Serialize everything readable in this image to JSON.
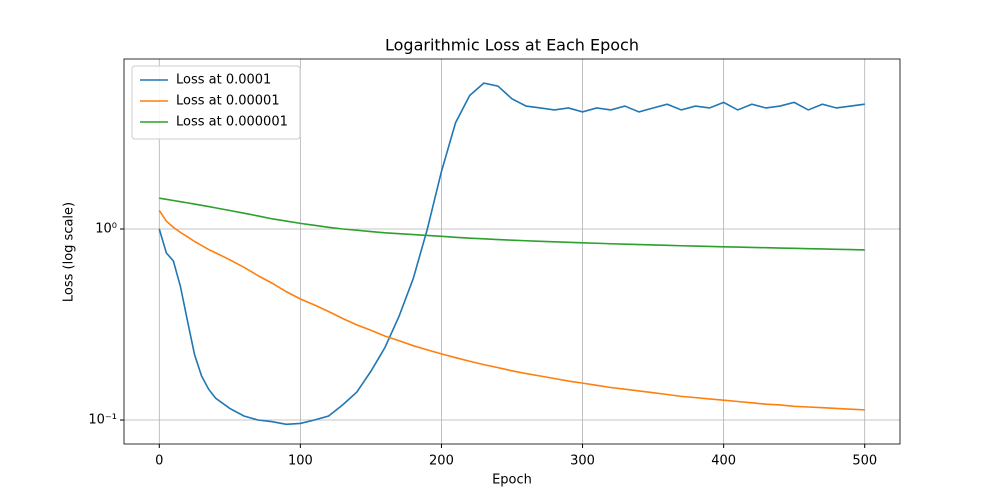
{
  "chart_data": {
    "type": "line",
    "title": "Logarithmic Loss at Each Epoch",
    "x_label": "Epoch",
    "y_label": "Loss (log scale)",
    "yscale": "log",
    "grid": true,
    "legend": "upper left",
    "xlim": [
      -25,
      525
    ],
    "xticks": [
      0,
      100,
      200,
      300,
      400,
      500
    ],
    "ylim": [
      0.0749,
      7.76
    ],
    "yticks": [
      {
        "value": 0.1,
        "label": "10⁻¹"
      },
      {
        "value": 1,
        "label": "10⁰"
      }
    ],
    "x": [
      0,
      5,
      10,
      15,
      20,
      25,
      30,
      35,
      40,
      50,
      60,
      70,
      80,
      90,
      100,
      110,
      120,
      130,
      140,
      150,
      160,
      170,
      180,
      190,
      200,
      210,
      220,
      230,
      240,
      250,
      260,
      270,
      280,
      290,
      300,
      310,
      320,
      330,
      340,
      350,
      360,
      370,
      380,
      390,
      400,
      410,
      420,
      430,
      440,
      450,
      460,
      470,
      480,
      490,
      500
    ],
    "series": [
      {
        "name": "Loss at 0.0001",
        "color": "#1f77b4",
        "values": [
          1.0,
          0.75,
          0.68,
          0.5,
          0.33,
          0.22,
          0.17,
          0.145,
          0.13,
          0.115,
          0.105,
          0.1,
          0.098,
          0.095,
          0.096,
          0.1,
          0.105,
          0.12,
          0.14,
          0.18,
          0.24,
          0.35,
          0.55,
          1.0,
          2.0,
          3.6,
          5.0,
          5.8,
          5.6,
          4.8,
          4.4,
          4.3,
          4.2,
          4.3,
          4.1,
          4.3,
          4.2,
          4.4,
          4.1,
          4.3,
          4.5,
          4.2,
          4.4,
          4.3,
          4.6,
          4.2,
          4.5,
          4.3,
          4.4,
          4.6,
          4.2,
          4.5,
          4.3,
          4.4,
          4.5
        ]
      },
      {
        "name": "Loss at 0.00001",
        "color": "#ff7f0e",
        "values": [
          1.25,
          1.1,
          1.02,
          0.96,
          0.91,
          0.86,
          0.82,
          0.78,
          0.75,
          0.69,
          0.63,
          0.57,
          0.52,
          0.47,
          0.43,
          0.4,
          0.37,
          0.34,
          0.315,
          0.295,
          0.275,
          0.26,
          0.245,
          0.233,
          0.222,
          0.212,
          0.203,
          0.195,
          0.188,
          0.181,
          0.175,
          0.17,
          0.165,
          0.16,
          0.156,
          0.152,
          0.148,
          0.145,
          0.142,
          0.139,
          0.136,
          0.133,
          0.131,
          0.129,
          0.127,
          0.125,
          0.123,
          0.121,
          0.12,
          0.118,
          0.117,
          0.116,
          0.115,
          0.114,
          0.113
        ]
      },
      {
        "name": "Loss at 0.000001",
        "color": "#2ca02c",
        "values": [
          1.45,
          1.43,
          1.41,
          1.39,
          1.37,
          1.35,
          1.33,
          1.31,
          1.29,
          1.25,
          1.21,
          1.17,
          1.13,
          1.1,
          1.07,
          1.045,
          1.02,
          1.0,
          0.985,
          0.97,
          0.955,
          0.945,
          0.935,
          0.925,
          0.915,
          0.905,
          0.895,
          0.888,
          0.88,
          0.874,
          0.868,
          0.862,
          0.857,
          0.852,
          0.847,
          0.842,
          0.837,
          0.833,
          0.829,
          0.825,
          0.821,
          0.817,
          0.814,
          0.81,
          0.807,
          0.804,
          0.801,
          0.798,
          0.795,
          0.792,
          0.789,
          0.786,
          0.783,
          0.78,
          0.777
        ]
      }
    ]
  }
}
